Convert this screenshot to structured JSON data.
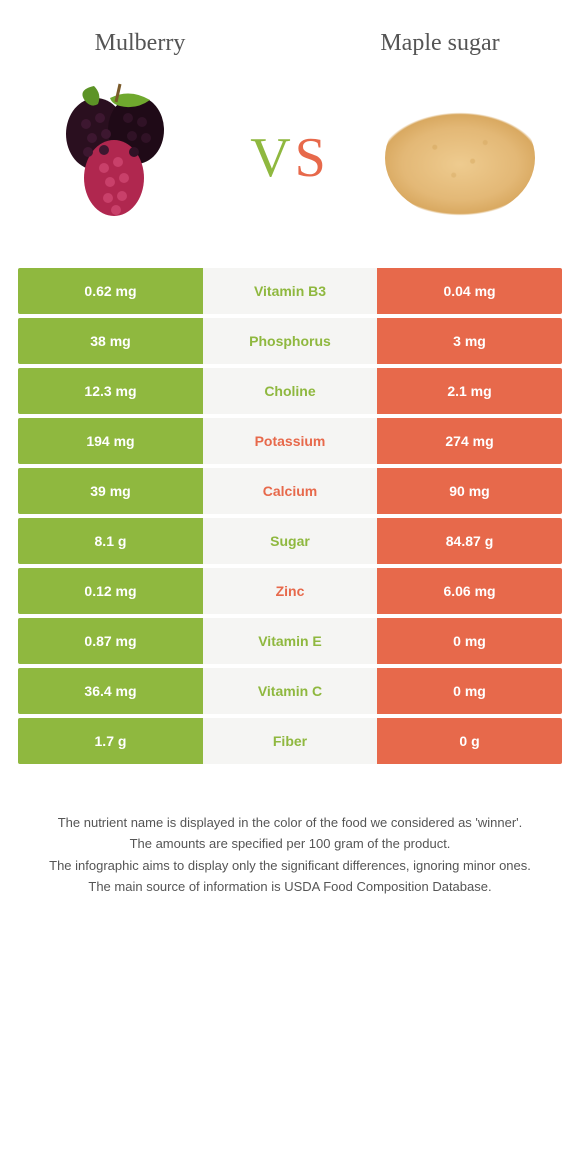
{
  "colors": {
    "left": "#8fb83f",
    "right": "#e7694b",
    "mid_bg": "#f5f5f3",
    "text": "#555555"
  },
  "header": {
    "left_title": "Mulberry",
    "right_title": "Maple sugar",
    "vs_v": "V",
    "vs_s": "S"
  },
  "rows": [
    {
      "nutrient": "Vitamin B3",
      "left": "0.62 mg",
      "right": "0.04 mg",
      "winner": "left"
    },
    {
      "nutrient": "Phosphorus",
      "left": "38 mg",
      "right": "3 mg",
      "winner": "left"
    },
    {
      "nutrient": "Choline",
      "left": "12.3 mg",
      "right": "2.1 mg",
      "winner": "left"
    },
    {
      "nutrient": "Potassium",
      "left": "194 mg",
      "right": "274 mg",
      "winner": "right"
    },
    {
      "nutrient": "Calcium",
      "left": "39 mg",
      "right": "90 mg",
      "winner": "right"
    },
    {
      "nutrient": "Sugar",
      "left": "8.1 g",
      "right": "84.87 g",
      "winner": "left"
    },
    {
      "nutrient": "Zinc",
      "left": "0.12 mg",
      "right": "6.06 mg",
      "winner": "right"
    },
    {
      "nutrient": "Vitamin E",
      "left": "0.87 mg",
      "right": "0 mg",
      "winner": "left"
    },
    {
      "nutrient": "Vitamin C",
      "left": "36.4 mg",
      "right": "0 mg",
      "winner": "left"
    },
    {
      "nutrient": "Fiber",
      "left": "1.7 g",
      "right": "0 g",
      "winner": "left"
    }
  ],
  "notes": [
    "The nutrient name is displayed in the color of the food we considered as 'winner'.",
    "The amounts are specified per 100 gram of the product.",
    "The infographic aims to display only the significant differences, ignoring minor ones.",
    "The main source of information is USDA Food Composition Database."
  ]
}
